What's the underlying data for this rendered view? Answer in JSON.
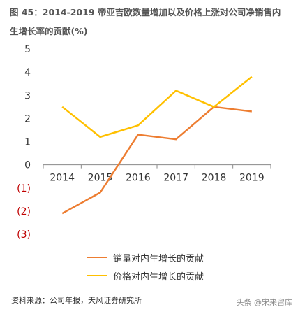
{
  "header": {
    "title": "图 45：2014-2019 帝亚吉欧数量增加以及价格上涨对公司净销售内生增长率的贡献(%)"
  },
  "footer": {
    "source": "资料来源：公司年报，天风证券研究所",
    "watermark": "头条 @宋来留库"
  },
  "colors": {
    "volume": "#ED7D31",
    "price": "#FFC000",
    "negative_label": "#C00000",
    "positive_label": "#333333"
  },
  "chart_data": {
    "type": "line",
    "x": [
      "2014",
      "2015",
      "2016",
      "2017",
      "2018",
      "2019"
    ],
    "series": [
      {
        "name": "销量对内生增长的贡献",
        "values": [
          -2.1,
          -1.2,
          1.3,
          1.1,
          2.5,
          2.3
        ]
      },
      {
        "name": "价格对内生增长的贡献",
        "values": [
          2.5,
          1.2,
          1.7,
          3.2,
          2.5,
          3.8
        ]
      }
    ],
    "ylim": [
      -3,
      5
    ],
    "yticks": [
      {
        "value": 5,
        "label": "5"
      },
      {
        "value": 4,
        "label": "4"
      },
      {
        "value": 3,
        "label": "3"
      },
      {
        "value": 2,
        "label": "2"
      },
      {
        "value": 1,
        "label": "1"
      },
      {
        "value": 0,
        "label": "0"
      },
      {
        "value": -1,
        "label": "(1)"
      },
      {
        "value": -2,
        "label": "(2)"
      },
      {
        "value": -3,
        "label": "(3)"
      }
    ],
    "grid": false,
    "legend": "bottom"
  }
}
